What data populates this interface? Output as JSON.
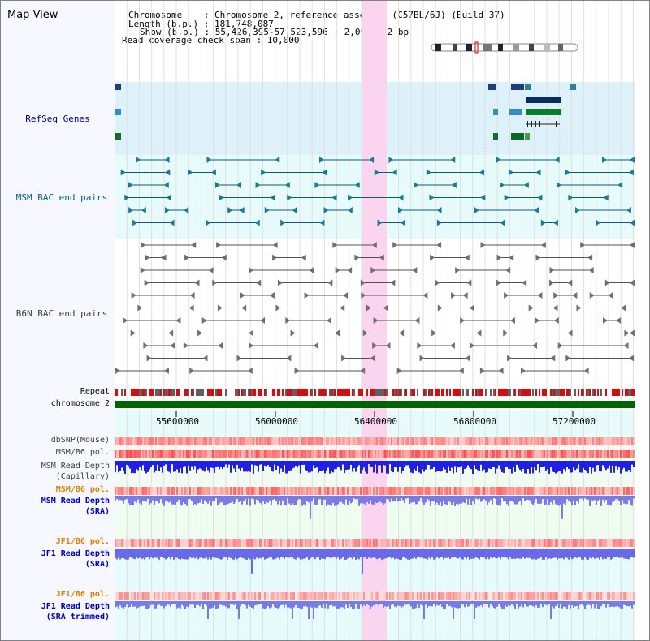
{
  "header": {
    "title": "Map View",
    "chromosome_line": "Chromosome    : Chromosome 2, reference assembly (C57BL/6J) (Build 37)",
    "length_line": "Length (b.p.) : 181,748,087",
    "show_line": "Show (b.p.) : 55,426,395-57,523,596 : 2,097,202 bp",
    "coverage_line": "Read coverage check span : 10,000"
  },
  "tracks": {
    "refseq": "RefSeq Genes",
    "msm_bac": "MSM BAC end pairs",
    "b6n_bac": "B6N BAC end pairs",
    "repeat": "Repeat",
    "chromosome": "chromosome 2",
    "dbsnp": "dbSNP(Mouse)",
    "msm_b6_pol_1": "MSM/B6 pol.",
    "msm_read_depth_cap_1": "MSM Read Depth",
    "msm_read_depth_cap_2": "(Capillary)",
    "msm_b6_pol_2": "MSM/B6 pol.",
    "msm_read_depth_sra_1": "MSM Read Depth",
    "msm_read_depth_sra_2": "(SRA)",
    "jf1_b6_pol_1": "JF1/B6 pol.",
    "jf1_read_depth_sra_1": "JF1 Read Depth",
    "jf1_read_depth_sra_2": "(SRA)",
    "jf1_b6_pol_2": "JF1/B6 pol.",
    "jf1_read_depth_trim_1": "JF1 Read Depth",
    "jf1_read_depth_trim_2": "(SRA trimmed)"
  },
  "axis": {
    "ticks": [
      "55600000",
      "56000000",
      "56400000",
      "56800000",
      "57200000"
    ]
  },
  "colors": {
    "refseq_label": "#00008b",
    "msm_label": "#006080",
    "b6n_label": "#404040",
    "pol_orange": "#e08000",
    "depth_blue": "#0000c0",
    "highlight": "#ffd0f0",
    "chromosome_bar": "#006400"
  }
}
